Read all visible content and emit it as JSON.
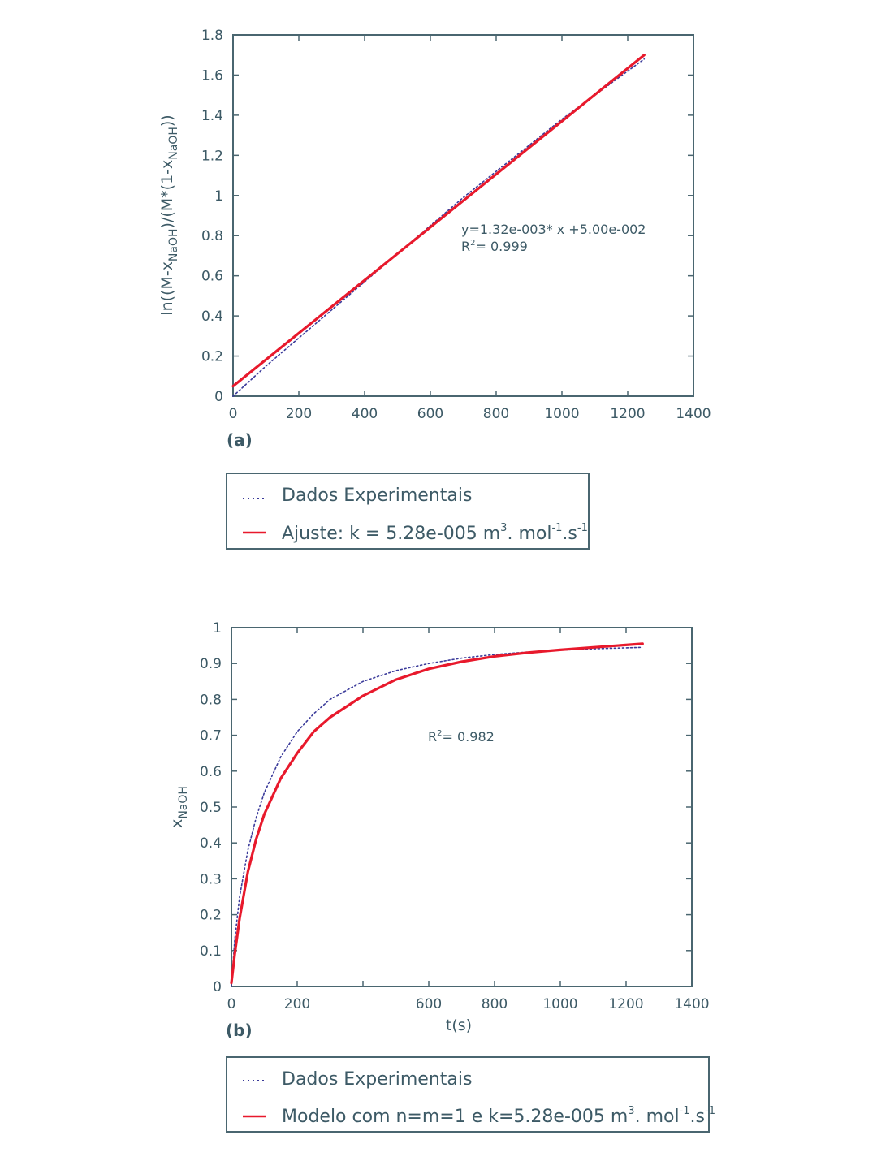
{
  "colors": {
    "data_line": "#3a3a9a",
    "fit_line": "#e8192c",
    "axis": "#4a6670",
    "text": "#3d5a66"
  },
  "chart_data": [
    {
      "id": "a",
      "type": "line",
      "panel_label": "(a)",
      "ylabel_parts": [
        "ln((M-x",
        "NaOH",
        ")/(M*(1-x",
        "NaOH",
        "))"
      ],
      "xlabel": "",
      "xlim": [
        0,
        1400
      ],
      "ylim": [
        0,
        1.8
      ],
      "xticks": [
        "0",
        "200",
        "400",
        "600",
        "800",
        "1000",
        "1200",
        "1400"
      ],
      "yticks": [
        "0",
        "0.2",
        "0.4",
        "0.6",
        "0.8",
        "1",
        "1.2",
        "1.4",
        "1.6",
        "1.8"
      ],
      "annotations": {
        "equation": "y=1.32e-003* x +5.00e-002",
        "r2_prefix": "R",
        "r2_sup": "2",
        "r2_value": "= 0.999"
      },
      "series": [
        {
          "name": "Dados Experimentais",
          "style": "dotted",
          "x": [
            0,
            100,
            200,
            300,
            400,
            500,
            600,
            700,
            800,
            900,
            1000,
            1100,
            1250
          ],
          "y": [
            0.0,
            0.15,
            0.29,
            0.43,
            0.57,
            0.71,
            0.85,
            0.99,
            1.12,
            1.25,
            1.38,
            1.5,
            1.68
          ]
        },
        {
          "name": "Ajuste: k = 5.28e-005 m³. mol⁻¹.s⁻¹",
          "style": "solid",
          "x": [
            0,
            1250
          ],
          "y": [
            0.05,
            1.7
          ]
        }
      ],
      "legend": [
        {
          "style": "dotted",
          "label": "Dados Experimentais"
        },
        {
          "style": "solid",
          "label": "Ajuste: k = 5.28e-005 m",
          "sup1": "3",
          "mid": ". mol",
          "sup2": "-1",
          "mid2": ".s",
          "sup3": "-1"
        }
      ]
    },
    {
      "id": "b",
      "type": "line",
      "panel_label": "(b)",
      "ylabel_parts": [
        "x",
        "NaOH"
      ],
      "xlabel": "t(s)",
      "xlim": [
        0,
        1400
      ],
      "ylim": [
        0,
        1
      ],
      "xticks": [
        "0",
        "200",
        "",
        "600",
        "800",
        "1000",
        "1200",
        "1400"
      ],
      "yticks": [
        "0",
        "0.1",
        "0.2",
        "0.3",
        "0.4",
        "0.5",
        "0.6",
        "0.7",
        "0.8",
        "0.9",
        "1"
      ],
      "annotations": {
        "r2_prefix": "R",
        "r2_sup": "2",
        "r2_value": "= 0.982"
      },
      "series": [
        {
          "name": "Dados Experimentais",
          "style": "dotted",
          "x": [
            0,
            10,
            25,
            50,
            75,
            100,
            150,
            200,
            250,
            300,
            400,
            500,
            600,
            700,
            800,
            900,
            1000,
            1100,
            1250
          ],
          "y": [
            0.0,
            0.13,
            0.25,
            0.38,
            0.47,
            0.54,
            0.64,
            0.71,
            0.76,
            0.8,
            0.85,
            0.88,
            0.9,
            0.915,
            0.925,
            0.932,
            0.937,
            0.941,
            0.945
          ]
        },
        {
          "name": "Modelo com n=m=1 e k=5.28e-005 m³. mol⁻¹.s⁻¹",
          "style": "solid",
          "x": [
            0,
            10,
            25,
            50,
            75,
            100,
            150,
            200,
            250,
            300,
            400,
            500,
            600,
            700,
            800,
            900,
            1000,
            1100,
            1250
          ],
          "y": [
            0.01,
            0.09,
            0.19,
            0.32,
            0.41,
            0.48,
            0.58,
            0.65,
            0.71,
            0.75,
            0.81,
            0.855,
            0.885,
            0.905,
            0.92,
            0.93,
            0.938,
            0.945,
            0.955
          ]
        }
      ],
      "legend": [
        {
          "style": "dotted",
          "label": "Dados Experimentais"
        },
        {
          "style": "solid",
          "label": "Modelo com n=m=1 e k=5.28e-005 m",
          "sup1": "3",
          "mid": ". mol",
          "sup2": "-1",
          "mid2": ".s",
          "sup3": "-1"
        }
      ]
    }
  ]
}
